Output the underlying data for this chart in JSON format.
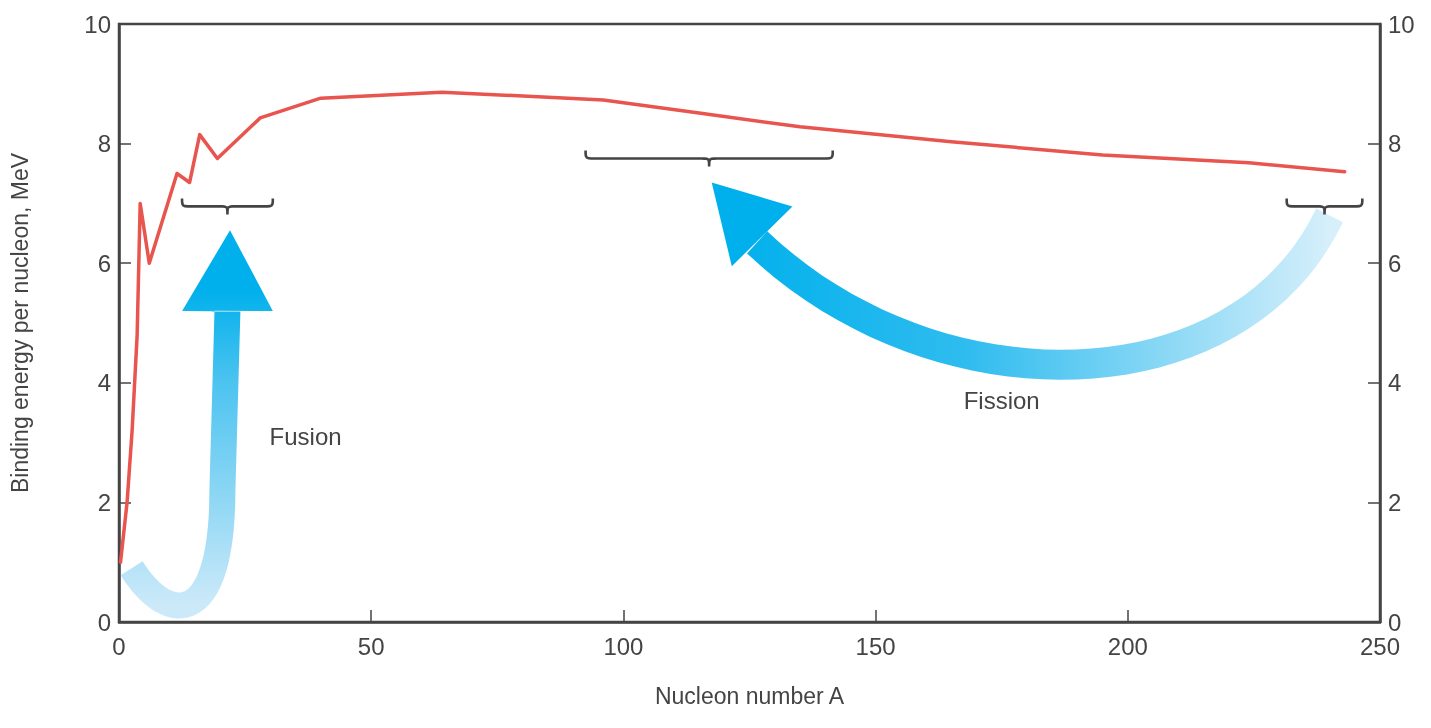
{
  "chart_data": {
    "type": "line",
    "xlabel": "Nucleon number A",
    "ylabel": "Binding energy per nucleon, MeV",
    "x": [
      0.3,
      1.6,
      2.6,
      3.6,
      4.2,
      6,
      11.5,
      14,
      16,
      19.5,
      28,
      40,
      64,
      96,
      115,
      135,
      165,
      195,
      224,
      243
    ],
    "series": [
      {
        "color": "#e8554e",
        "values": [
          1.0,
          2.0,
          3.2,
          4.8,
          7.0,
          6.0,
          7.5,
          7.35,
          8.15,
          7.75,
          8.43,
          8.76,
          8.86,
          8.73,
          8.51,
          8.28,
          8.03,
          7.81,
          7.68,
          7.53
        ]
      }
    ],
    "xlim": [
      0,
      250
    ],
    "xticks": [
      0,
      50,
      100,
      150,
      200,
      250
    ],
    "ylim": [
      0,
      10
    ],
    "yticks": [
      0,
      2,
      4,
      6,
      8,
      10
    ],
    "y2lim": [
      0,
      10
    ],
    "y2ticks": [
      0,
      2,
      4,
      6,
      8,
      10
    ],
    "annotations": [
      "Fusion",
      "Fission"
    ],
    "grid": false,
    "marker": "none",
    "line_style": "solid"
  }
}
